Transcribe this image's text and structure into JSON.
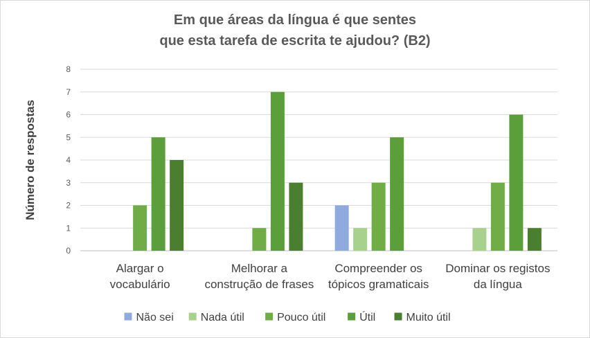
{
  "chart_data": {
    "type": "bar",
    "title_lines": [
      "Em que áreas da língua é que sentes",
      "que esta tarefa de escrita te ajudou? (B2)"
    ],
    "ylabel": "Número de respostas",
    "xlabel": "",
    "ylim": [
      0,
      8
    ],
    "yticks": [
      0,
      1,
      2,
      3,
      4,
      5,
      6,
      7,
      8
    ],
    "grid": true,
    "legend_position": "bottom",
    "categories": [
      [
        "Alargar o",
        "vocabulário"
      ],
      [
        "Melhorar a",
        "construção de frases"
      ],
      [
        "Compreender os",
        "tópicos gramaticais"
      ],
      [
        "Dominar os registos",
        "da língua"
      ]
    ],
    "series": [
      {
        "name": "Não sei",
        "color": "#8faadc",
        "values": [
          0,
          0,
          2,
          0
        ]
      },
      {
        "name": "Nada útil",
        "color": "#a9d18e",
        "values": [
          0,
          0,
          1,
          1
        ]
      },
      {
        "name": "Pouco útil",
        "color": "#70ad47",
        "values": [
          2,
          1,
          3,
          3
        ]
      },
      {
        "name": "Útil",
        "color": "#5b9f3b",
        "values": [
          5,
          7,
          5,
          6
        ]
      },
      {
        "name": "Muito útil",
        "color": "#4a7f2f",
        "values": [
          4,
          3,
          0,
          1
        ]
      }
    ]
  }
}
